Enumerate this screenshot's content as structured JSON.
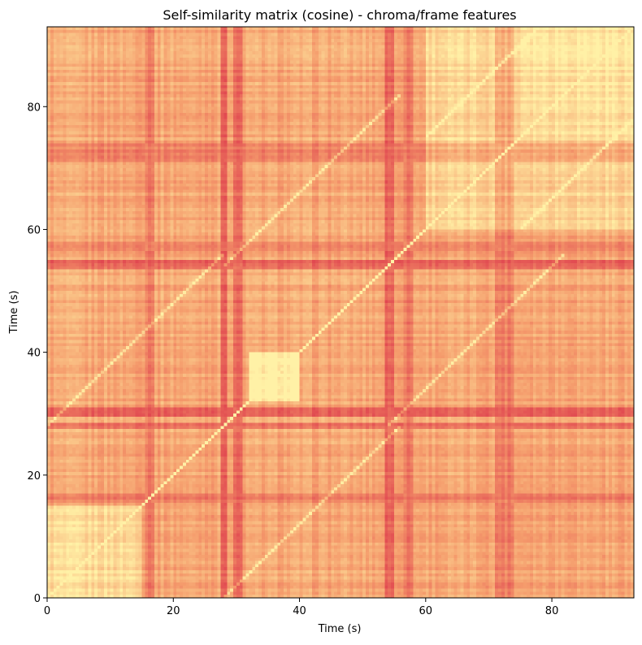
{
  "chart_data": {
    "type": "heatmap",
    "title": "Self-similarity matrix (cosine) - chroma/frame features",
    "xlabel": "Time (s)",
    "ylabel": "Time (s)",
    "xlim": [
      0,
      93
    ],
    "ylim": [
      0,
      93
    ],
    "xticks": [
      0,
      20,
      40,
      60,
      80
    ],
    "yticks": [
      0,
      20,
      40,
      60,
      80
    ],
    "colormap": {
      "low": "#e0454f",
      "mid": "#f59c6c",
      "high": "#fff1a6"
    },
    "grid": false,
    "dissimilar_bands_s": [
      {
        "range": [
          15.5,
          17
        ],
        "strength": 0.5
      },
      {
        "range": [
          27.5,
          28.5
        ],
        "strength": 0.8
      },
      {
        "range": [
          29.5,
          31
        ],
        "strength": 0.9
      },
      {
        "range": [
          53.5,
          55
        ],
        "strength": 0.9
      },
      {
        "range": [
          56.5,
          58
        ],
        "strength": 0.6
      },
      {
        "range": [
          71,
          74
        ],
        "strength": 0.5
      }
    ],
    "bright_blocks_s": [
      {
        "range": [
          32,
          40
        ],
        "level": 0.45
      },
      {
        "range": [
          75,
          93
        ],
        "level": 0.35
      },
      {
        "range": [
          60,
          93
        ],
        "level": 0.25
      },
      {
        "range": [
          0,
          15
        ],
        "level": 0.3
      }
    ],
    "repeated_segments_s": [
      {
        "x_start": 28,
        "y_start": 0,
        "length": 28
      },
      {
        "x_start": 0,
        "y_start": 28,
        "length": 28
      },
      {
        "x_start": 54,
        "y_start": 28,
        "length": 28
      },
      {
        "x_start": 28,
        "y_start": 54,
        "length": 28
      },
      {
        "x_start": 60,
        "y_start": 75,
        "length": 18
      },
      {
        "x_start": 75,
        "y_start": 60,
        "length": 18
      }
    ]
  }
}
